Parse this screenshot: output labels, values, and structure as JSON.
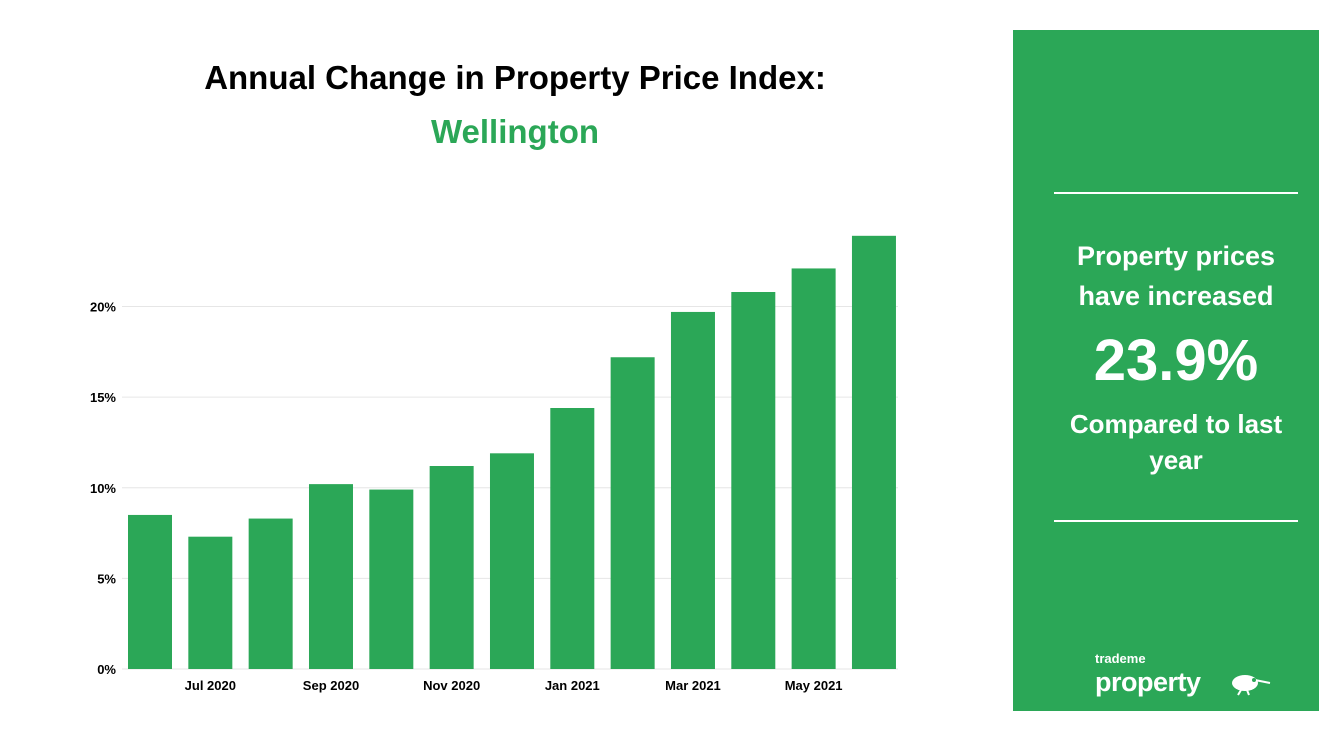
{
  "title": "Annual Change in Property Price Index:",
  "subtitle": "Wellington",
  "colors": {
    "bar": "#2ba757",
    "panel": "#2ba757",
    "grid": "#e6e6e6",
    "text": "#000000"
  },
  "chart_data": {
    "type": "bar",
    "title": "Annual Change in Property Price Index:",
    "subtitle": "Wellington",
    "categories": [
      "",
      "Jul 2020",
      "",
      "Sep 2020",
      "",
      "Nov 2020",
      "",
      "Jan 2021",
      "",
      "Mar 2021",
      "",
      "May 2021",
      ""
    ],
    "values": [
      8.5,
      7.3,
      8.3,
      10.2,
      9.9,
      11.2,
      11.9,
      14.4,
      17.2,
      19.7,
      20.8,
      22.1,
      23.9
    ],
    "ylim": [
      0,
      24
    ],
    "yticks": [
      0,
      5,
      10,
      15,
      20
    ],
    "ytick_labels": [
      "0%",
      "5%",
      "10%",
      "15%",
      "20%"
    ],
    "grid": true,
    "xlabel": "",
    "ylabel": ""
  },
  "panel": {
    "line1": "Property prices have increased",
    "value": "23.9%",
    "line2": "Compared to last year",
    "logo_small": "trademe",
    "logo_big": "property"
  }
}
